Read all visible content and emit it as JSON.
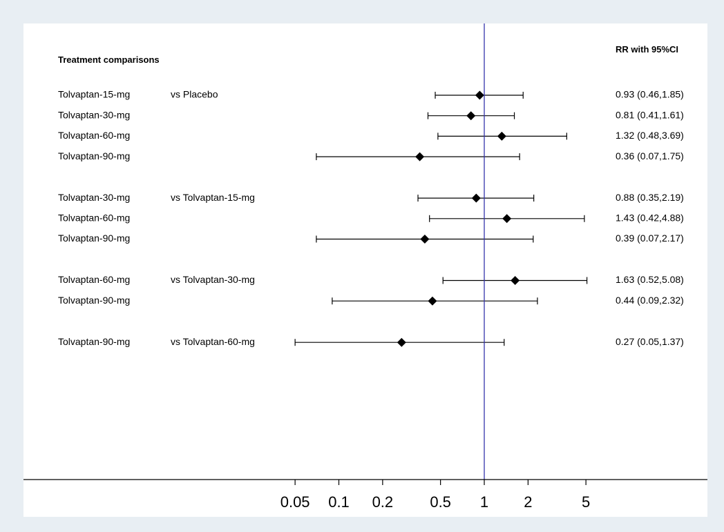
{
  "chart_data": {
    "type": "forest",
    "scale": "log",
    "xlim": [
      0.05,
      5
    ],
    "reference_line": 1,
    "ticks": [
      0.05,
      0.1,
      0.2,
      0.5,
      1,
      2,
      5
    ],
    "tick_labels": [
      "0.05",
      "0.1",
      "0.2",
      "0.5",
      "1",
      "2",
      "5"
    ],
    "left_header": "Treatment comparisons",
    "right_header": "RR with 95%CI",
    "colors": {
      "reference_line": "#3333aa",
      "marker": "#000000"
    },
    "groups": [
      {
        "comparator": "vs Placebo",
        "rows": [
          {
            "label": "Tolvaptan-15-mg",
            "rr": 0.93,
            "lo": 0.46,
            "hi": 1.85,
            "text": "0.93 (0.46,1.85)"
          },
          {
            "label": "Tolvaptan-30-mg",
            "rr": 0.81,
            "lo": 0.41,
            "hi": 1.61,
            "text": "0.81 (0.41,1.61)"
          },
          {
            "label": "Tolvaptan-60-mg",
            "rr": 1.32,
            "lo": 0.48,
            "hi": 3.69,
            "text": "1.32 (0.48,3.69)"
          },
          {
            "label": "Tolvaptan-90-mg",
            "rr": 0.36,
            "lo": 0.07,
            "hi": 1.75,
            "text": "0.36 (0.07,1.75)"
          }
        ]
      },
      {
        "comparator": "vs Tolvaptan-15-mg",
        "rows": [
          {
            "label": "Tolvaptan-30-mg",
            "rr": 0.88,
            "lo": 0.35,
            "hi": 2.19,
            "text": "0.88 (0.35,2.19)"
          },
          {
            "label": "Tolvaptan-60-mg",
            "rr": 1.43,
            "lo": 0.42,
            "hi": 4.88,
            "text": "1.43 (0.42,4.88)"
          },
          {
            "label": "Tolvaptan-90-mg",
            "rr": 0.39,
            "lo": 0.07,
            "hi": 2.17,
            "text": "0.39 (0.07,2.17)"
          }
        ]
      },
      {
        "comparator": "vs Tolvaptan-30-mg",
        "rows": [
          {
            "label": "Tolvaptan-60-mg",
            "rr": 1.63,
            "lo": 0.52,
            "hi": 5.08,
            "text": "1.63 (0.52,5.08)"
          },
          {
            "label": "Tolvaptan-90-mg",
            "rr": 0.44,
            "lo": 0.09,
            "hi": 2.32,
            "text": "0.44 (0.09,2.32)"
          }
        ]
      },
      {
        "comparator": "vs Tolvaptan-60-mg",
        "rows": [
          {
            "label": "Tolvaptan-90-mg",
            "rr": 0.27,
            "lo": 0.05,
            "hi": 1.37,
            "text": "0.27 (0.05,1.37)"
          }
        ]
      }
    ]
  }
}
